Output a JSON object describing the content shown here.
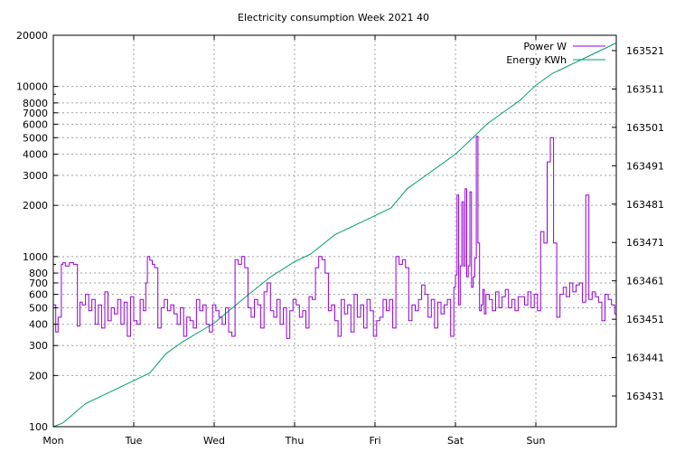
{
  "chart_data": {
    "type": "line",
    "title": "Electricity consumption Week 2021 40",
    "x_categories": [
      "Mon",
      "Tue",
      "Wed",
      "Thu",
      "Fri",
      "Sat",
      "Sun"
    ],
    "y_left": {
      "scale": "log",
      "range": [
        100,
        20000
      ],
      "ticks": [
        100,
        200,
        300,
        400,
        500,
        600,
        700,
        800,
        1000,
        2000,
        3000,
        4000,
        5000,
        6000,
        7000,
        8000,
        10000,
        20000
      ],
      "tick_labels": [
        "100",
        "200",
        "300",
        "400",
        "500",
        "600",
        "700",
        "800",
        "1000",
        "2000",
        "3000",
        "4000",
        "5000",
        "6000",
        "7000",
        "8000",
        "10000",
        "20000"
      ]
    },
    "y_right": {
      "scale": "linear",
      "range": [
        163423,
        163525
      ],
      "ticks": [
        163431,
        163441,
        163451,
        163461,
        163471,
        163481,
        163491,
        163501,
        163511,
        163521
      ],
      "tick_labels": [
        "163431",
        "163441",
        "163451",
        "163461",
        "163471",
        "163481",
        "163491",
        "163501",
        "163511",
        "163521"
      ]
    },
    "grid": true,
    "legend_position": "top-right",
    "series": [
      {
        "name": "Power W",
        "axis": "left",
        "color": "#9400d3",
        "style": "steps",
        "x": [
          0.0,
          0.03,
          0.06,
          0.1,
          0.12,
          0.15,
          0.2,
          0.25,
          0.3,
          0.33,
          0.36,
          0.4,
          0.44,
          0.48,
          0.52,
          0.56,
          0.6,
          0.64,
          0.68,
          0.72,
          0.76,
          0.8,
          0.84,
          0.88,
          0.92,
          0.96,
          1.0,
          1.04,
          1.08,
          1.12,
          1.15,
          1.17,
          1.2,
          1.23,
          1.26,
          1.3,
          1.34,
          1.38,
          1.42,
          1.46,
          1.5,
          1.54,
          1.58,
          1.62,
          1.66,
          1.7,
          1.74,
          1.78,
          1.82,
          1.86,
          1.9,
          1.94,
          1.98,
          2.02,
          2.06,
          2.1,
          2.14,
          2.18,
          2.22,
          2.26,
          2.3,
          2.34,
          2.38,
          2.42,
          2.46,
          2.5,
          2.54,
          2.58,
          2.62,
          2.66,
          2.7,
          2.74,
          2.78,
          2.82,
          2.86,
          2.9,
          2.94,
          2.98,
          3.02,
          3.06,
          3.1,
          3.14,
          3.18,
          3.22,
          3.26,
          3.3,
          3.34,
          3.38,
          3.42,
          3.46,
          3.5,
          3.54,
          3.58,
          3.62,
          3.66,
          3.7,
          3.74,
          3.78,
          3.82,
          3.86,
          3.9,
          3.94,
          3.98,
          4.02,
          4.06,
          4.1,
          4.14,
          4.18,
          4.22,
          4.26,
          4.3,
          4.34,
          4.38,
          4.42,
          4.46,
          4.5,
          4.54,
          4.58,
          4.62,
          4.66,
          4.7,
          4.74,
          4.78,
          4.82,
          4.86,
          4.9,
          4.94,
          4.98,
          5.0,
          5.02,
          5.04,
          5.06,
          5.08,
          5.1,
          5.12,
          5.14,
          5.16,
          5.18,
          5.2,
          5.22,
          5.24,
          5.26,
          5.28,
          5.3,
          5.32,
          5.34,
          5.36,
          5.38,
          5.42,
          5.46,
          5.5,
          5.54,
          5.58,
          5.62,
          5.66,
          5.7,
          5.74,
          5.78,
          5.82,
          5.86,
          5.9,
          5.94,
          5.98,
          6.02,
          6.06,
          6.1,
          6.14,
          6.18,
          6.22,
          6.26,
          6.3,
          6.34,
          6.38,
          6.42,
          6.46,
          6.5,
          6.54,
          6.58,
          6.62,
          6.66,
          6.7,
          6.74,
          6.78,
          6.82,
          6.86,
          6.9,
          6.94,
          6.98
        ],
        "values": [
          520,
          360,
          440,
          900,
          920,
          880,
          920,
          900,
          390,
          540,
          520,
          600,
          480,
          560,
          400,
          520,
          380,
          620,
          420,
          500,
          460,
          560,
          400,
          540,
          340,
          580,
          420,
          400,
          560,
          480,
          700,
          1000,
          950,
          900,
          860,
          380,
          500,
          560,
          480,
          520,
          460,
          400,
          500,
          340,
          440,
          420,
          380,
          560,
          480,
          520,
          400,
          360,
          520,
          480,
          440,
          400,
          500,
          360,
          340,
          960,
          900,
          1000,
          860,
          500,
          440,
          560,
          520,
          380,
          620,
          700,
          480,
          440,
          560,
          400,
          500,
          330,
          480,
          560,
          520,
          440,
          480,
          380,
          580,
          560,
          860,
          1000,
          960,
          800,
          480,
          520,
          420,
          340,
          560,
          460,
          520,
          360,
          600,
          440,
          520,
          380,
          560,
          480,
          340,
          420,
          440,
          560,
          480,
          560,
          380,
          1000,
          900,
          960,
          860,
          420,
          520,
          480,
          560,
          680,
          600,
          440,
          560,
          380,
          540,
          460,
          520,
          560,
          340,
          660,
          780,
          2300,
          520,
          880,
          2100,
          880,
          2500,
          760,
          880,
          2400,
          660,
          760,
          980,
          5100,
          1200,
          480,
          520,
          640,
          460,
          600,
          560,
          480,
          620,
          500,
          580,
          640,
          500,
          560,
          480,
          580,
          580,
          520,
          620,
          500,
          600,
          480,
          1400,
          1200,
          3600,
          5000,
          1200,
          440,
          600,
          660,
          580,
          700,
          620,
          680,
          700,
          540,
          2300,
          560,
          620,
          580,
          540,
          420,
          600,
          560,
          520,
          460
        ]
      },
      {
        "name": "Energy KWh",
        "axis": "right",
        "color": "#009e73",
        "style": "line",
        "x": [
          0.0,
          0.12,
          0.4,
          0.7,
          1.0,
          1.2,
          1.4,
          1.6,
          2.0,
          2.4,
          2.7,
          3.0,
          3.2,
          3.5,
          3.9,
          4.2,
          4.4,
          4.6,
          4.8,
          5.0,
          5.2,
          5.4,
          5.6,
          5.8,
          6.0,
          6.2,
          6.4,
          6.6,
          6.8,
          7.0
        ],
        "values": [
          163423,
          163424,
          163429,
          163432,
          163435,
          163437,
          163442,
          163445,
          163450,
          163457,
          163462,
          163466,
          163468,
          163473,
          163477,
          163480,
          163485,
          163488,
          163491,
          163494,
          163498,
          163502,
          163505,
          163508,
          163512,
          163515,
          163517,
          163519,
          163521,
          163523
        ]
      }
    ]
  }
}
